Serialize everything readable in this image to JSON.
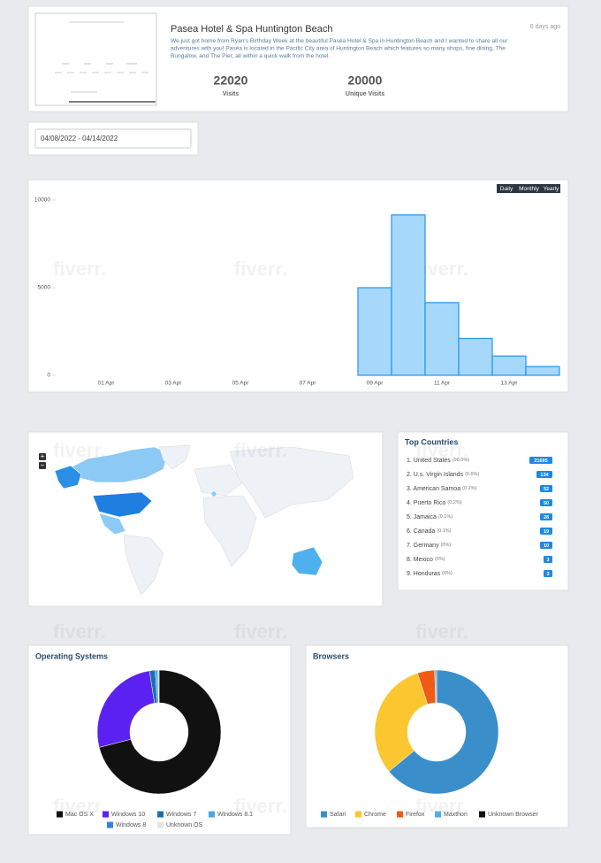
{
  "header": {
    "title": "Pasea Hotel & Spa Huntington Beach",
    "time_ago": "6 days ago",
    "description": [
      "We just got home from Ryan's Birthday Week at the beautiful Paséa Hotel & Spa in Huntington Beach and I wanted to share all our",
      "adventures with you! Paséa is located in the Pacific City area of Huntington Beach which features so many shops, fine dining, The",
      "Bungalow, and The Pier, all within a quick walk from the hotel."
    ],
    "stats": [
      {
        "value": 22020,
        "label": "Visits"
      },
      {
        "value": 20000,
        "label": "Unique Visits"
      }
    ]
  },
  "date_range": "04/08/2022 - 04/14/2022",
  "watermark": "fiverr.",
  "visits_chart": {
    "type": "bar",
    "categories": [
      null,
      "01 Apr",
      null,
      "03 Apr",
      null,
      "05 Apr",
      null,
      "07 Apr",
      null,
      "09 Apr",
      null,
      "11 Apr",
      null,
      "13 Apr",
      null
    ],
    "values": [
      0,
      0,
      0,
      0,
      0,
      0,
      0,
      0,
      0,
      5000,
      9150,
      4150,
      2100,
      1100,
      500
    ],
    "color": "#a6d8fb",
    "edge_color": "#2196f3",
    "ylim": [
      0,
      10000
    ],
    "yticks": [
      0,
      5000,
      10000
    ],
    "period_buttons": [
      "Daily",
      "Monthly",
      "Yearly"
    ]
  },
  "map": {
    "zoom_in": "+",
    "zoom_out": "−"
  },
  "top_countries": {
    "title": "Top Countries",
    "rows": [
      {
        "name": "1. United States",
        "share": "(98.5%)",
        "count": 21695
      },
      {
        "name": "2. U.s. Virgin Islands",
        "share": "(0.6%)",
        "count": 134
      },
      {
        "name": "3. American Samoa",
        "share": "(0.2%)",
        "count": 52
      },
      {
        "name": "4. Puerto Rico",
        "share": "(0.2%)",
        "count": 50
      },
      {
        "name": "5. Jamaica",
        "share": "(0.1%)",
        "count": 28
      },
      {
        "name": "6. Canada",
        "share": "(0.1%)",
        "count": 19
      },
      {
        "name": "7. Germany",
        "share": "(0%)",
        "count": 10
      },
      {
        "name": "8. Mexico",
        "share": "(0%)",
        "count": 3
      },
      {
        "name": "9. Honduras",
        "share": "(0%)",
        "count": 3
      }
    ]
  },
  "os_chart": {
    "type": "donut",
    "title": "Operating Systems",
    "series": [
      {
        "name": "Mac OS X",
        "color": "#111111",
        "value": 71
      },
      {
        "name": "Windows 10",
        "color": "#5b21f0",
        "value": 26.5
      },
      {
        "name": "Windows 7",
        "color": "#1a6fb0",
        "value": 1.5
      },
      {
        "name": "Windows 8.1",
        "color": "#4fa3e8",
        "value": 0.7
      },
      {
        "name": "Windows 8",
        "color": "#2f80ed",
        "value": 0.2
      },
      {
        "name": "Unknown OS",
        "color": "#e4e4e4",
        "value": 0.1
      }
    ]
  },
  "browser_chart": {
    "type": "donut",
    "title": "Browsers",
    "series": [
      {
        "name": "Safari",
        "color": "#3a8fca",
        "value": 64
      },
      {
        "name": "Chrome",
        "color": "#fcc630",
        "value": 31
      },
      {
        "name": "Firefox",
        "color": "#f05a14",
        "value": 4.5
      },
      {
        "name": "Maxthon",
        "color": "#4cb0e8",
        "value": 0.3
      },
      {
        "name": "Unknown Browser",
        "color": "#111111",
        "value": 0.2
      }
    ]
  }
}
